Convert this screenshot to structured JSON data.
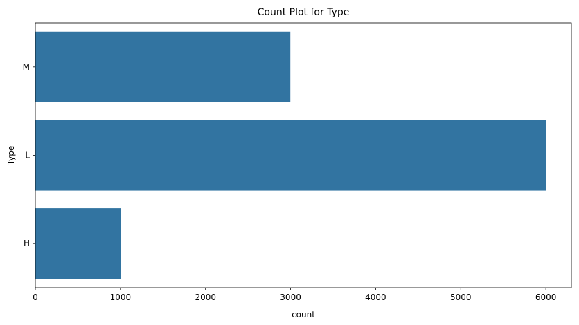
{
  "chart_data": {
    "type": "bar",
    "orientation": "horizontal",
    "title": "Count Plot for Type",
    "xlabel": "count",
    "ylabel": "Type",
    "categories": [
      "M",
      "L",
      "H"
    ],
    "values": [
      2997,
      6000,
      1003
    ],
    "xlim": [
      0,
      6300
    ],
    "xticks": [
      0,
      1000,
      2000,
      3000,
      4000,
      5000,
      6000
    ],
    "grid": false,
    "bar_color": "#3274a1"
  }
}
